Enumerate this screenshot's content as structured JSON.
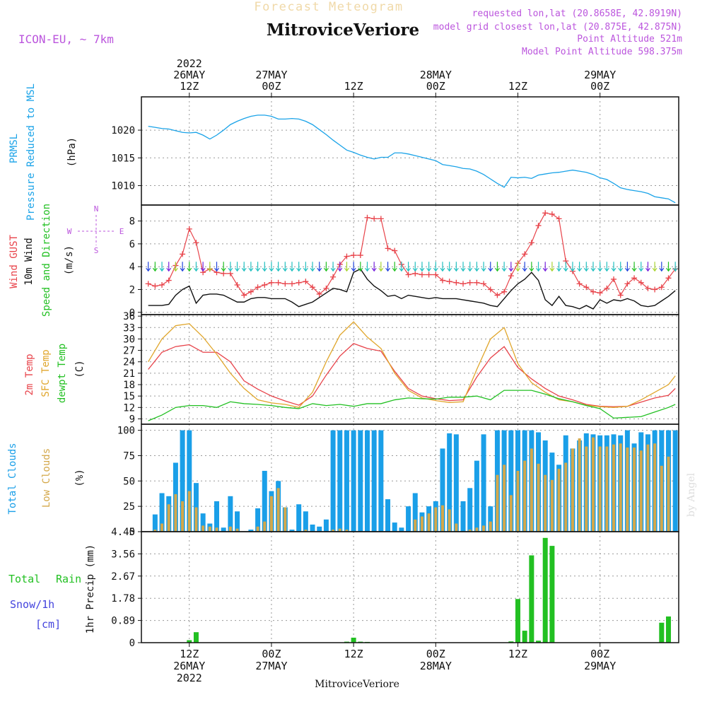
{
  "header": {
    "product": "Forecast Meteogram",
    "station": "MitroviceVeriore",
    "model": "ICON-EU, ~ 7km",
    "requested": "requested lon,lat (20.8658E, 42.8919N)",
    "closest": "model grid closest lon,lat (20.875E, 42.875N)",
    "point_alt": "Point Altitude 521m",
    "model_alt": "Model Point Altitude 598.375m",
    "footer_station": "MitroviceVeriore",
    "watermark": "by Angel"
  },
  "colors": {
    "pressure": "#1aa3e8",
    "gust": "#e8434a",
    "wind": "#111111",
    "direction": "#22c022",
    "temp2m": "#e8434a",
    "sfc": "#e0a62c",
    "dewpt": "#22c022",
    "total_clouds": "#1a9fe8",
    "low_clouds": "#d4a84a",
    "rain": "#22c022",
    "snow": "#4444dd",
    "title_faint": "#f0d9a8",
    "info": "#bb55dd"
  },
  "time_axis": {
    "top_labels": [
      {
        "h": 12,
        "lines": [
          "2022",
          "26MAY",
          "12Z"
        ]
      },
      {
        "h": 24,
        "lines": [
          "27MAY",
          "00Z"
        ]
      },
      {
        "h": 36,
        "lines": [
          "12Z"
        ]
      },
      {
        "h": 48,
        "lines": [
          "28MAY",
          "00Z"
        ]
      },
      {
        "h": 60,
        "lines": [
          "12Z"
        ]
      },
      {
        "h": 72,
        "lines": [
          "29MAY",
          "00Z"
        ]
      }
    ],
    "bottom_labels": [
      {
        "h": 12,
        "lines": [
          "12Z",
          "26MAY",
          "2022"
        ]
      },
      {
        "h": 24,
        "lines": [
          "00Z",
          "27MAY"
        ]
      },
      {
        "h": 36,
        "lines": [
          "12Z"
        ]
      },
      {
        "h": 48,
        "lines": [
          "00Z",
          "28MAY"
        ]
      },
      {
        "h": 60,
        "lines": [
          "12Z"
        ]
      },
      {
        "h": 72,
        "lines": [
          "00Z",
          "29MAY"
        ]
      }
    ]
  },
  "chart_data": [
    {
      "type": "line",
      "panel": "pressure",
      "title": "PRMSL Pressure Reduced to MSL",
      "ylabel": "(hPa)",
      "ylim": [
        1006.5,
        1026
      ],
      "yticks": [
        1010,
        1015,
        1020
      ],
      "x_unit": "hours since 2022-05-26 00Z",
      "x": [
        6,
        7,
        8,
        9,
        10,
        11,
        12,
        13,
        14,
        15,
        16,
        17,
        18,
        19,
        20,
        21,
        22,
        23,
        24,
        25,
        26,
        27,
        28,
        29,
        30,
        31,
        32,
        33,
        34,
        35,
        36,
        37,
        38,
        39,
        40,
        41,
        42,
        43,
        44,
        45,
        46,
        47,
        48,
        49,
        50,
        51,
        52,
        53,
        54,
        55,
        56,
        57,
        58,
        59,
        60,
        61,
        62,
        63,
        64,
        65,
        66,
        67,
        68,
        69,
        70,
        71,
        72,
        73,
        74,
        75,
        76,
        77,
        78,
        79,
        80,
        81,
        82,
        83
      ],
      "values": [
        1020.7,
        1020.5,
        1020.3,
        1020.2,
        1019.9,
        1019.6,
        1019.5,
        1019.6,
        1019.1,
        1018.4,
        1019.1,
        1020.0,
        1021.0,
        1021.6,
        1022.1,
        1022.5,
        1022.7,
        1022.7,
        1022.5,
        1022.0,
        1022.0,
        1022.1,
        1022.0,
        1021.6,
        1021.0,
        1020.1,
        1019.2,
        1018.2,
        1017.3,
        1016.4,
        1016.0,
        1015.5,
        1015.1,
        1014.8,
        1015.1,
        1015.1,
        1015.9,
        1015.9,
        1015.7,
        1015.4,
        1015.1,
        1014.8,
        1014.5,
        1013.8,
        1013.6,
        1013.4,
        1013.1,
        1013.0,
        1012.6,
        1012.0,
        1011.2,
        1010.4,
        1009.7,
        1011.5,
        1011.4,
        1011.5,
        1011.3,
        1011.9,
        1012.1,
        1012.3,
        1012.4,
        1012.6,
        1012.8,
        1012.6,
        1012.4,
        1012.0,
        1011.4,
        1011.1,
        1010.4,
        1009.6,
        1009.3,
        1009.1,
        1008.9,
        1008.6,
        1008.0,
        1007.8,
        1007.6,
        1006.9
      ]
    },
    {
      "type": "line",
      "panel": "wind",
      "title": "Wind GUST / 10m Wind Speed and Direction",
      "ylabel": "(m/s)",
      "compass": [
        "N",
        "S",
        "W",
        "E"
      ],
      "ylim": [
        -0.2,
        9.4
      ],
      "yticks": [
        0,
        2,
        4,
        6,
        8
      ],
      "x_unit": "hours since 2022-05-26 00Z",
      "x": [
        6,
        7,
        8,
        9,
        10,
        11,
        12,
        13,
        14,
        15,
        16,
        17,
        18,
        19,
        20,
        21,
        22,
        23,
        24,
        25,
        26,
        27,
        28,
        29,
        30,
        31,
        32,
        33,
        34,
        35,
        36,
        37,
        38,
        39,
        40,
        41,
        42,
        43,
        44,
        45,
        46,
        47,
        48,
        49,
        50,
        51,
        52,
        53,
        54,
        55,
        56,
        57,
        58,
        59,
        60,
        61,
        62,
        63,
        64,
        65,
        66,
        67,
        68,
        69,
        70,
        71,
        72,
        73,
        74,
        75,
        76,
        77,
        78,
        79,
        80,
        81,
        82,
        83
      ],
      "series": [
        {
          "name": "Wind GUST",
          "values": [
            2.5,
            2.3,
            2.4,
            2.8,
            4.1,
            5.1,
            7.3,
            6.1,
            3.5,
            3.8,
            3.5,
            3.4,
            3.4,
            2.4,
            1.5,
            1.8,
            2.2,
            2.4,
            2.6,
            2.6,
            2.5,
            2.5,
            2.6,
            2.7,
            2.2,
            1.6,
            2.1,
            3.1,
            4.2,
            4.9,
            5.0,
            5.0,
            8.3,
            8.2,
            8.2,
            5.6,
            5.4,
            4.2,
            3.3,
            3.4,
            3.3,
            3.3,
            3.3,
            2.8,
            2.7,
            2.6,
            2.5,
            2.6,
            2.6,
            2.5,
            2.0,
            1.5,
            1.8,
            3.2,
            4.3,
            5.1,
            6.1,
            7.6,
            8.7,
            8.6,
            8.2,
            4.5,
            3.6,
            2.5,
            2.2,
            1.8,
            1.7,
            2.1,
            2.9,
            1.5,
            2.5,
            3.0,
            2.6,
            2.1,
            2.0,
            2.2,
            3.0,
            3.8
          ],
          "names_dup": null
        },
        {
          "name": "10m Wind",
          "values": [
            0.6,
            0.6,
            0.6,
            0.7,
            1.5,
            2.0,
            2.3,
            0.8,
            1.5,
            1.6,
            1.6,
            1.5,
            1.2,
            0.9,
            0.9,
            1.2,
            1.3,
            1.3,
            1.2,
            1.2,
            1.2,
            0.9,
            0.5,
            0.7,
            0.9,
            1.3,
            1.7,
            2.1,
            2.0,
            1.8,
            3.5,
            3.8,
            2.9,
            2.3,
            1.9,
            1.4,
            1.5,
            1.2,
            1.5,
            1.4,
            1.3,
            1.2,
            1.3,
            1.2,
            1.2,
            1.2,
            1.1,
            1.0,
            0.9,
            0.8,
            0.6,
            0.5,
            1.2,
            1.9,
            2.5,
            2.9,
            3.5,
            2.8,
            1.1,
            0.6,
            1.4,
            0.6,
            0.5,
            0.3,
            0.6,
            0.3,
            1.1,
            0.8,
            1.1,
            1.0,
            1.2,
            1.0,
            0.6,
            0.5,
            0.6,
            1.0,
            1.4,
            1.9
          ]
        }
      ]
    },
    {
      "type": "line",
      "panel": "temperature",
      "title": "2m Temp / SFC Temp / dewpt Temp",
      "ylabel": "(C)",
      "ylim": [
        7.6,
        36.4
      ],
      "yticks": [
        9,
        12,
        15,
        18,
        21,
        24,
        27,
        30,
        33,
        36
      ],
      "x_unit": "hours since 2022-05-26 00Z",
      "x": [
        6,
        8,
        10,
        12,
        14,
        16,
        18,
        20,
        22,
        24,
        26,
        28,
        30,
        32,
        34,
        36,
        38,
        40,
        42,
        44,
        46,
        48,
        50,
        52,
        54,
        56,
        58,
        60,
        62,
        64,
        66,
        68,
        70,
        72,
        74,
        76,
        78,
        80,
        82,
        83
      ],
      "series": [
        {
          "name": "2m Temp",
          "values": [
            22,
            26.5,
            28,
            28.5,
            26.5,
            26.5,
            24,
            19,
            16.8,
            15,
            13.7,
            12.6,
            15,
            20.5,
            25.5,
            28.8,
            27.5,
            26.8,
            21.5,
            17,
            15,
            14.3,
            13.8,
            14,
            20,
            25,
            28,
            22.5,
            19.5,
            17,
            15,
            14,
            12.8,
            12.3,
            12.2,
            12.3,
            13.4,
            14.5,
            15.2,
            17
          ]
        },
        {
          "name": "SFC Temp",
          "values": [
            24,
            30,
            33.5,
            34,
            30.5,
            26,
            21,
            17,
            14,
            13.2,
            12.8,
            12,
            16,
            24,
            31,
            34.5,
            30.5,
            27.5,
            21,
            16.5,
            14.5,
            13.8,
            13.3,
            13.5,
            22,
            30,
            33,
            23.5,
            18.5,
            16,
            14,
            13.5,
            12.6,
            12.2,
            12,
            12.3,
            14,
            16,
            18,
            20.3
          ]
        },
        {
          "name": "dewpt Temp",
          "values": [
            8.5,
            10,
            12,
            12.5,
            12.5,
            12,
            13.5,
            13,
            12.8,
            12.5,
            12,
            11.7,
            13,
            12.5,
            12.8,
            12.3,
            13,
            13,
            14,
            14.5,
            14.3,
            14.2,
            14.7,
            14.7,
            15,
            14,
            16.5,
            16.5,
            16.5,
            15.5,
            14.3,
            13.5,
            12.5,
            11.7,
            9.2,
            9.4,
            9.6,
            10.8,
            12,
            12.8
          ]
        }
      ]
    },
    {
      "type": "bar",
      "panel": "clouds",
      "title": "Total Clouds / Low Clouds",
      "ylabel": "(%)",
      "ylim": [
        0,
        106
      ],
      "yticks": [
        0,
        25,
        50,
        75,
        100
      ],
      "x_unit": "hours since 2022-05-26 00Z",
      "x": [
        6,
        7,
        8,
        9,
        10,
        11,
        12,
        13,
        14,
        15,
        16,
        17,
        18,
        19,
        20,
        21,
        22,
        23,
        24,
        25,
        26,
        27,
        28,
        29,
        30,
        31,
        32,
        33,
        34,
        35,
        36,
        37,
        38,
        39,
        40,
        41,
        42,
        43,
        44,
        45,
        46,
        47,
        48,
        49,
        50,
        51,
        52,
        53,
        54,
        55,
        56,
        57,
        58,
        59,
        60,
        61,
        62,
        63,
        64,
        65,
        66,
        67,
        68,
        69,
        70,
        71,
        72,
        73,
        74,
        75,
        76,
        77,
        78,
        79,
        80,
        81,
        82,
        83
      ],
      "series": [
        {
          "name": "Total Clouds",
          "values": [
            0,
            17,
            38,
            35,
            68,
            100,
            100,
            48,
            18,
            8,
            30,
            4,
            35,
            20,
            0,
            2,
            23,
            60,
            40,
            50,
            24,
            2,
            27,
            20,
            7,
            5,
            12,
            100,
            100,
            100,
            100,
            100,
            100,
            100,
            100,
            32,
            9,
            4,
            25,
            38,
            19,
            25,
            30,
            82,
            97,
            96,
            30,
            43,
            70,
            96,
            25,
            100,
            100,
            100,
            100,
            100,
            100,
            98,
            90,
            78,
            66,
            95,
            82,
            90,
            97,
            96,
            95,
            95,
            96,
            95,
            100,
            87,
            98,
            96,
            100,
            100,
            100,
            100
          ]
        },
        {
          "name": "Low Clouds",
          "values": [
            0,
            2,
            8,
            27,
            37,
            30,
            40,
            24,
            6,
            5,
            4,
            0,
            5,
            3,
            0,
            0,
            5,
            10,
            35,
            43,
            24,
            0,
            0,
            2,
            0,
            0,
            0,
            2,
            3,
            2,
            0,
            0,
            0,
            0,
            0,
            0,
            0,
            0,
            0,
            12,
            15,
            18,
            24,
            26,
            22,
            8,
            0,
            2,
            4,
            6,
            10,
            56,
            66,
            36,
            60,
            70,
            82,
            67,
            56,
            51,
            62,
            68,
            82,
            92,
            84,
            93,
            84,
            84,
            86,
            87,
            83,
            83,
            80,
            86,
            87,
            65,
            74,
            0
          ]
        }
      ]
    },
    {
      "type": "bar",
      "panel": "precipitation",
      "title": "Total Rain / Snow/1h [cm]",
      "ylabel": "1hr Precip (mm)",
      "ylim": [
        0,
        4.45
      ],
      "yticks": [
        0,
        0.89,
        1.78,
        2.67,
        3.56,
        4.45
      ],
      "x_unit": "hours since 2022-05-26 00Z",
      "x": [
        12,
        13,
        35,
        36,
        37,
        38,
        59,
        60,
        61,
        62,
        63,
        64,
        65,
        81,
        82
      ],
      "series": [
        {
          "name": "Total Rain",
          "values": [
            0.1,
            0.42,
            0.04,
            0.2,
            0.04,
            0.03,
            0.05,
            1.75,
            0.48,
            3.5,
            0.08,
            4.2,
            3.88,
            0.8,
            1.05
          ]
        }
      ]
    }
  ],
  "panel_labels": {
    "pressure": [
      "PRMSL",
      "Pressure Reduced to MSL",
      "(hPa)"
    ],
    "wind": [
      "Wind GUST",
      "10m Wind",
      "Speed and Direction",
      "(m/s)"
    ],
    "temperature": [
      "2m Temp",
      "SFC Temp",
      "dewpt Temp",
      "(C)"
    ],
    "clouds": [
      "Total Clouds",
      "Low Clouds",
      "(%)"
    ],
    "precip": [
      "Total",
      "Rain",
      "Snow/1h",
      "[cm]",
      "1hr Precip (mm)"
    ]
  }
}
